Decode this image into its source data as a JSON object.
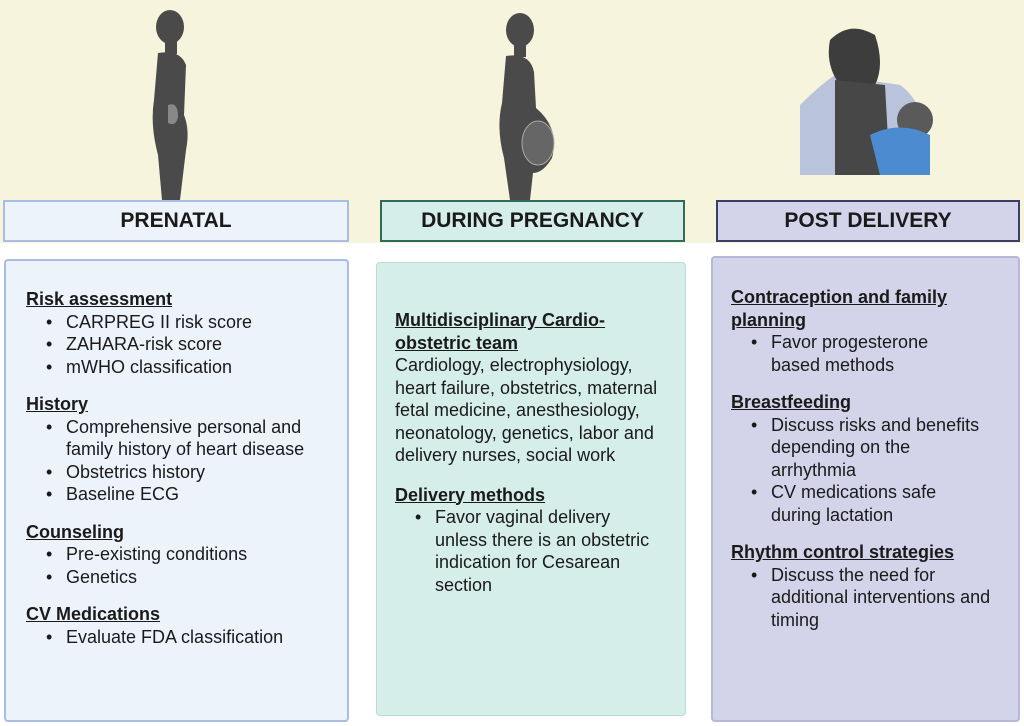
{
  "colors": {
    "band": "#f6f4dc",
    "prenatal": "#edf3fb",
    "during": "#d5eee9",
    "post": "#d3d4ea"
  },
  "headers": {
    "prenatal": "PRENATAL",
    "during": "DURING PREGNANCY",
    "post": "POST DELIVERY"
  },
  "prenatal": [
    {
      "title": "Risk assessment",
      "items": [
        "CARPREG II risk score",
        "ZAHARA-risk score",
        "mWHO classification"
      ]
    },
    {
      "title": "History",
      "items": [
        "Comprehensive personal and family history of heart disease",
        "Obstetrics history",
        "Baseline ECG"
      ]
    },
    {
      "title": "Counseling",
      "items": [
        "Pre-existing conditions",
        "Genetics"
      ]
    },
    {
      "title": "CV Medications",
      "items": [
        "Evaluate FDA classification"
      ]
    }
  ],
  "during": [
    {
      "title": "Multidisciplinary Cardio-obstetric team",
      "text": "Cardiology, electrophysiology, heart failure, obstetrics, maternal fetal medicine, anesthesiology, neonatology, genetics, labor and delivery nurses, social work"
    },
    {
      "title": "Delivery methods",
      "items": [
        "Favor vaginal delivery unless there is an obstetric indication for Cesarean section"
      ]
    }
  ],
  "post": [
    {
      "title": "Contraception and family planning",
      "items": [
        "Favor progesterone based methods"
      ]
    },
    {
      "title": "Breastfeeding",
      "items": [
        "Discuss risks and benefits depending on the arrhythmia",
        "CV medications safe during lactation"
      ]
    },
    {
      "title": "Rhythm control strategies",
      "items": [
        "Discuss the need for additional interventions and timing"
      ]
    }
  ]
}
